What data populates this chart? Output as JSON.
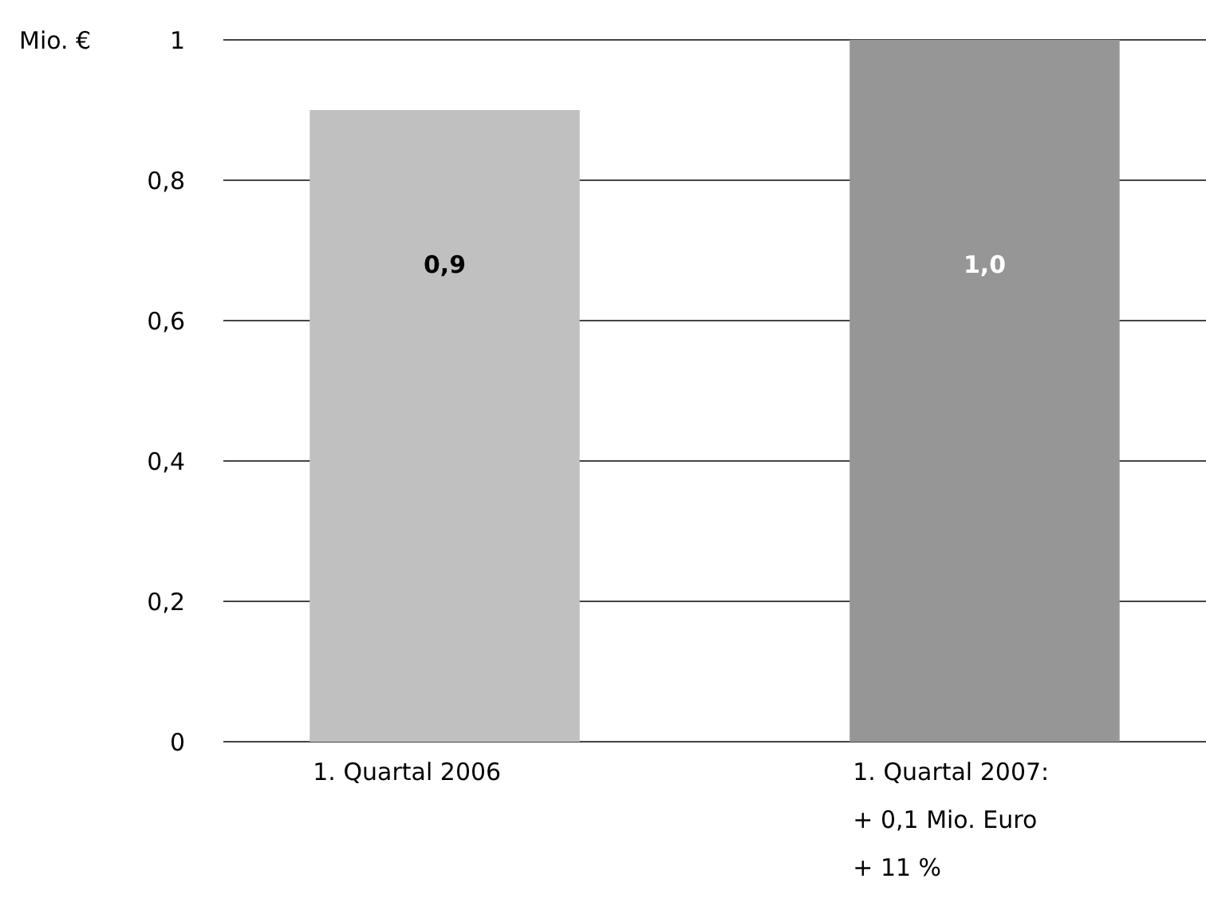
{
  "chart_data": {
    "type": "bar",
    "ylabel": "Mio. €",
    "categories": [
      "1. Quartal 2006",
      "1. Quartal 2007:\n+ 0,1 Mio. Euro\n+ 11 %"
    ],
    "values": [
      0.9,
      1.0
    ],
    "colors": [
      "#c0c0c0",
      "#969696"
    ],
    "value_labels": [
      "0,9",
      "1,0"
    ],
    "ylim": [
      0,
      1
    ],
    "yticks": [
      0,
      {
        "value": 0.2,
        "label": "0,2"
      },
      {
        "value": 0.4,
        "label": "0,4"
      },
      {
        "value": 0.6,
        "label": "0,6"
      },
      {
        "value": 0.8,
        "label": "0,8"
      },
      1
    ],
    "grid": "y"
  }
}
